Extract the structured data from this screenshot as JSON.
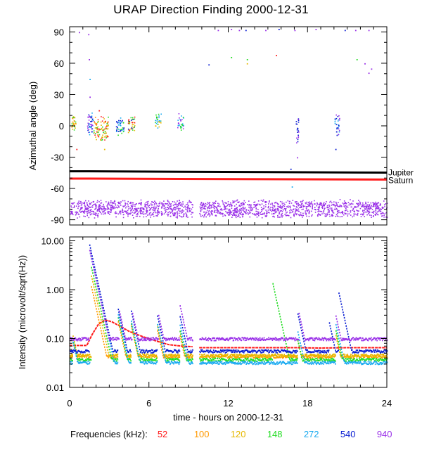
{
  "title": "URAP Direction Finding  2000-12-31",
  "xlabel": "time - hours on 2000-12-31",
  "frequency_legend": {
    "label": "Frequencies (kHz):",
    "items": [
      {
        "value": "52",
        "color": "#ff1a1a"
      },
      {
        "value": "100",
        "color": "#ff9900"
      },
      {
        "value": "120",
        "color": "#e6b800"
      },
      {
        "value": "148",
        "color": "#22dd22"
      },
      {
        "value": "272",
        "color": "#1aaaf0"
      },
      {
        "value": "540",
        "color": "#0a1ed2"
      },
      {
        "value": "940",
        "color": "#9a30e8"
      }
    ]
  },
  "chart_data": [
    {
      "type": "scatter",
      "title": "URAP Direction Finding  2000-12-31",
      "ylabel": "Azimuthal angle (deg)",
      "xlabel": "time - hours on 2000-12-31",
      "xlim": [
        0,
        24
      ],
      "ylim": [
        -95,
        95
      ],
      "xticks": [
        0,
        6,
        12,
        18,
        24
      ],
      "yticks": [
        90,
        60,
        30,
        0,
        -30,
        -60,
        -90
      ],
      "reference_lines": [
        {
          "name": "Jupiter",
          "color": "#000000",
          "y_start": -43.5,
          "y_end": -44.8
        },
        {
          "name": "Saturn",
          "color": "#ff1a1a",
          "y_start": -50.5,
          "y_end": -51.5
        }
      ],
      "clusters": [
        {
          "x_range": [
            0.1,
            0.45
          ],
          "y_center": 3,
          "y_spread": 9,
          "colors": [
            "#e6b800",
            "#22dd22",
            "#ff9900"
          ],
          "n": 30
        },
        {
          "x_range": [
            1.3,
            1.8
          ],
          "y_center": 2,
          "y_spread": 12,
          "colors": [
            "#0a1ed2",
            "#1aaaf0",
            "#9a30e8"
          ],
          "n": 45
        },
        {
          "x_range": [
            1.8,
            2.9
          ],
          "y_center": -2,
          "y_spread": 12,
          "colors": [
            "#22dd22",
            "#e6b800",
            "#ff9900",
            "#ff1a1a"
          ],
          "n": 90
        },
        {
          "x_range": [
            3.5,
            4.1
          ],
          "y_center": 0,
          "y_spread": 9,
          "colors": [
            "#0a1ed2",
            "#1aaaf0",
            "#22dd22"
          ],
          "n": 40
        },
        {
          "x_range": [
            4.4,
            4.9
          ],
          "y_center": 2,
          "y_spread": 9,
          "colors": [
            "#0a1ed2",
            "#22dd22",
            "#e6b800",
            "#ff1a1a"
          ],
          "n": 40
        },
        {
          "x_range": [
            6.4,
            6.9
          ],
          "y_center": 5,
          "y_spread": 8,
          "colors": [
            "#22dd22",
            "#1aaaf0",
            "#e6b800"
          ],
          "n": 30
        },
        {
          "x_range": [
            8.1,
            8.6
          ],
          "y_center": 4,
          "y_spread": 9,
          "colors": [
            "#22dd22",
            "#1aaaf0",
            "#9a30e8"
          ],
          "n": 30
        },
        {
          "x_range": [
            17.1,
            17.3
          ],
          "y_center": -3,
          "y_spread": 14,
          "colors": [
            "#0a1ed2",
            "#9a30e8"
          ],
          "n": 22
        },
        {
          "x_range": [
            20.0,
            20.4
          ],
          "y_center": 2,
          "y_spread": 12,
          "colors": [
            "#0a1ed2",
            "#1aaaf0",
            "#9a30e8"
          ],
          "n": 30
        },
        {
          "x_range": [
            0.0,
            24.0
          ],
          "y_center": -79,
          "y_spread": 9,
          "colors": [
            "#9a30e8"
          ],
          "n": 1700,
          "gap": [
            9.3,
            9.8
          ]
        }
      ],
      "sparse_points": [
        {
          "x": 0.7,
          "y": 90,
          "color": "#9a30e8"
        },
        {
          "x": 1.4,
          "y": 88,
          "color": "#9a30e8"
        },
        {
          "x": 1.45,
          "y": 64,
          "color": "#9a30e8"
        },
        {
          "x": 1.5,
          "y": 45,
          "color": "#1aaaf0"
        },
        {
          "x": 1.5,
          "y": 28,
          "color": "#9a30e8"
        },
        {
          "x": 10.5,
          "y": 59,
          "color": "#0a1ed2"
        },
        {
          "x": 11.2,
          "y": 92,
          "color": "#9a30e8"
        },
        {
          "x": 12.2,
          "y": 93,
          "color": "#9a30e8"
        },
        {
          "x": 12.8,
          "y": 92,
          "color": "#9a30e8"
        },
        {
          "x": 13.3,
          "y": 92,
          "color": "#0a1ed2"
        },
        {
          "x": 12.2,
          "y": 66,
          "color": "#22dd22"
        },
        {
          "x": 13.4,
          "y": 60,
          "color": "#e6b800"
        },
        {
          "x": 14.8,
          "y": 92,
          "color": "#9a30e8"
        },
        {
          "x": 15.8,
          "y": 93,
          "color": "#0a1ed2"
        },
        {
          "x": 15.6,
          "y": 68,
          "color": "#ff1a1a"
        },
        {
          "x": 17.0,
          "y": 92,
          "color": "#9a30e8"
        },
        {
          "x": 18.6,
          "y": 93,
          "color": "#9a30e8"
        },
        {
          "x": 20.8,
          "y": 92,
          "color": "#0a1ed2"
        },
        {
          "x": 21.6,
          "y": 92,
          "color": "#9a30e8"
        },
        {
          "x": 22.6,
          "y": 92,
          "color": "#9a30e8"
        },
        {
          "x": 21.7,
          "y": 64,
          "color": "#22dd22"
        },
        {
          "x": 22.3,
          "y": 60,
          "color": "#9a30e8"
        },
        {
          "x": 22.8,
          "y": 55,
          "color": "#9a30e8"
        },
        {
          "x": 22.6,
          "y": 51,
          "color": "#9a30e8"
        },
        {
          "x": 16.8,
          "y": -58,
          "color": "#1aaaf0"
        },
        {
          "x": 16.7,
          "y": -41,
          "color": "#0a1ed2"
        },
        {
          "x": 17.2,
          "y": -30,
          "color": "#9a30e8"
        },
        {
          "x": 0.5,
          "y": -22,
          "color": "#ff1a1a"
        },
        {
          "x": 2.6,
          "y": -22,
          "color": "#e6b800"
        },
        {
          "x": 20.1,
          "y": -22,
          "color": "#0a1ed2"
        },
        {
          "x": 13.4,
          "y": 64,
          "color": "#22dd22"
        },
        {
          "x": 2.2,
          "y": 15,
          "color": "#ff1a1a"
        }
      ]
    },
    {
      "type": "line",
      "ylabel": "Intensity (microvolt/sqrt(Hz))",
      "xlabel": "time - hours on 2000-12-31",
      "xlim": [
        0,
        24
      ],
      "ylim": [
        0.01,
        12
      ],
      "yscale": "log",
      "xticks": [
        0,
        6,
        12,
        18,
        24
      ],
      "yticks": [
        10.0,
        1.0,
        0.1,
        0.01
      ],
      "ytick_labels": [
        "10.00",
        "1.00",
        "0.10",
        "0.01"
      ],
      "series": [
        {
          "name": "52",
          "color": "#ff1a1a",
          "baseline": 0.065,
          "x": [
            0,
            1.3,
            1.7,
            2.2,
            2.7,
            3.2,
            3.8,
            4.5,
            5.5,
            6.5,
            7.5,
            8.5,
            9.3,
            9.8,
            11,
            13,
            15,
            17,
            19,
            21,
            23,
            24
          ],
          "y": [
            0.072,
            0.072,
            0.12,
            0.2,
            0.24,
            0.22,
            0.18,
            0.14,
            0.11,
            0.09,
            0.075,
            0.07,
            0.068,
            0.065,
            0.065,
            0.065,
            0.065,
            0.065,
            0.064,
            0.065,
            0.065,
            0.065
          ]
        },
        {
          "name": "100",
          "color": "#ff9900",
          "baseline": 0.043,
          "bursts": [
            0.2,
            1.6,
            3.6,
            4.6,
            6.6,
            8.3,
            17.2,
            20.1
          ],
          "peaks": [
            0.1,
            1.2,
            0.25,
            0.2,
            0.15,
            0.12,
            0.1,
            0.12
          ]
        },
        {
          "name": "120",
          "color": "#e6b800",
          "baseline": 0.045,
          "bursts": [
            0.2,
            1.6,
            3.6,
            4.6,
            6.6,
            8.3,
            17.2,
            20.1
          ],
          "peaks": [
            0.12,
            2.0,
            0.3,
            0.22,
            0.18,
            0.15,
            0.1,
            0.12
          ]
        },
        {
          "name": "148",
          "color": "#22dd22",
          "baseline": 0.037,
          "bursts": [
            0.2,
            1.6,
            3.6,
            4.6,
            6.6,
            8.3,
            15.3,
            17.2,
            20.1
          ],
          "peaks": [
            0.1,
            3.0,
            0.3,
            0.22,
            0.2,
            0.15,
            1.5,
            0.1,
            0.15
          ]
        },
        {
          "name": "272",
          "color": "#1aaaf0",
          "baseline": 0.032,
          "bursts": [
            0.2,
            1.5,
            3.6,
            4.6,
            6.6,
            8.3,
            17.2,
            20.1
          ],
          "peaks": [
            0.09,
            6.0,
            0.35,
            0.25,
            0.2,
            0.2,
            0.15,
            0.2
          ]
        },
        {
          "name": "540",
          "color": "#0a1ed2",
          "baseline": 0.055,
          "bursts": [
            1.45,
            3.6,
            4.6,
            6.6,
            8.3,
            17.2,
            19.6,
            20.3
          ],
          "peaks": [
            9.0,
            0.45,
            0.4,
            0.3,
            0.3,
            0.35,
            0.22,
            0.95
          ]
        },
        {
          "name": "940",
          "color": "#9a30e8",
          "baseline": 0.098,
          "bursts": [
            1.45,
            3.7,
            4.7,
            6.7,
            8.3,
            17.3,
            20.1
          ],
          "peaks": [
            7.0,
            0.4,
            0.35,
            0.3,
            0.5,
            0.35,
            0.3
          ]
        }
      ],
      "gap": [
        9.3,
        9.8
      ]
    }
  ],
  "right_labels": {
    "jupiter": "Jupiter",
    "saturn": "Saturn"
  }
}
